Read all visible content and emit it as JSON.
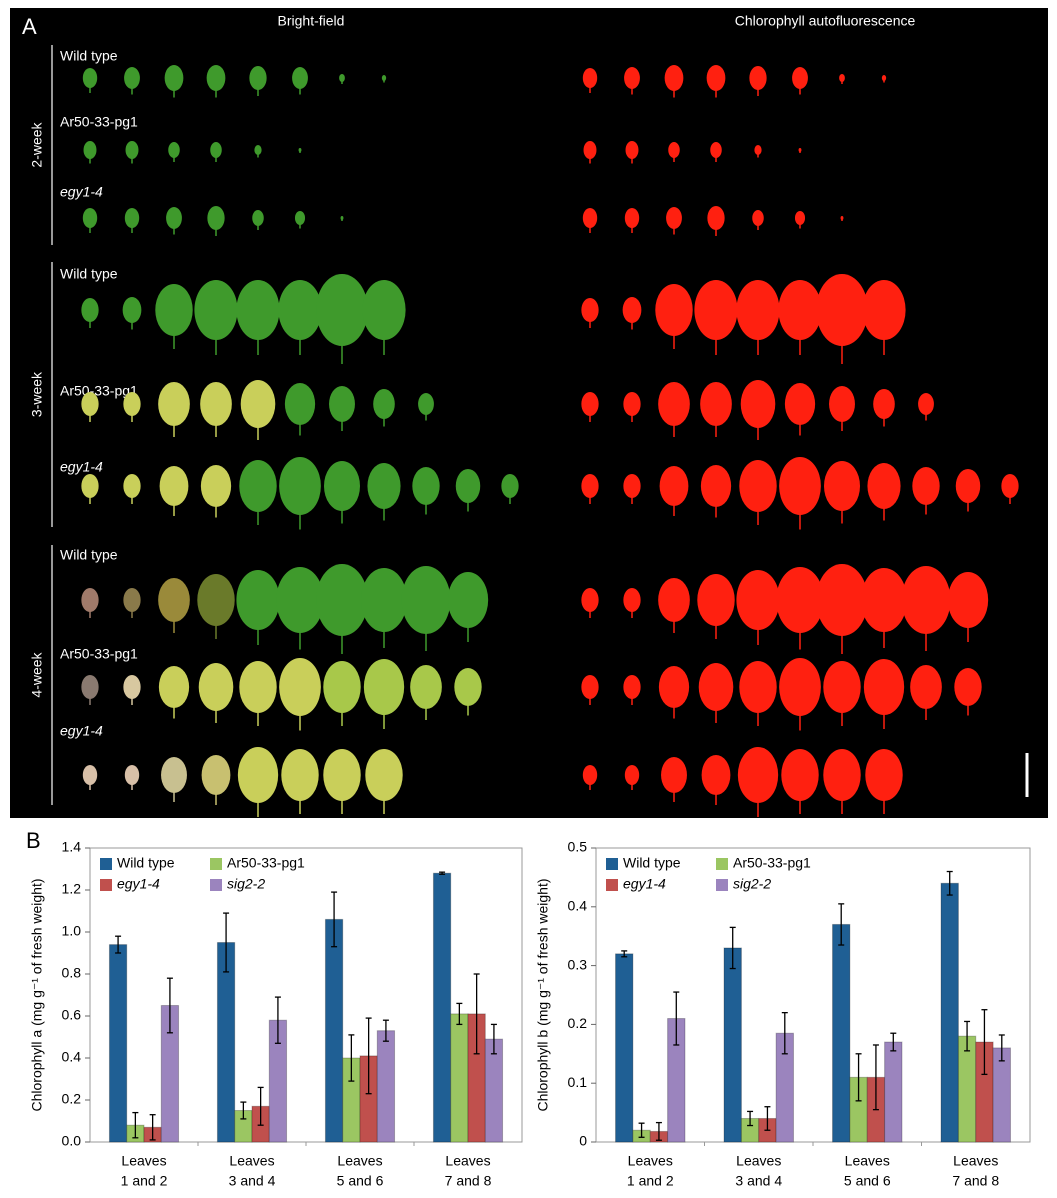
{
  "panel_a": {
    "label": "A",
    "column_titles": [
      "Bright-field",
      "Chlorophyll autofluorescence"
    ],
    "groups": [
      {
        "age": "2-week",
        "rows": [
          "Wild type",
          "Ar50-33-pg1",
          "egy1-4"
        ]
      },
      {
        "age": "3-week",
        "rows": [
          "Wild type",
          "Ar50-33-pg1",
          "egy1-4"
        ]
      },
      {
        "age": "4-week",
        "rows": [
          "Wild type",
          "Ar50-33-pg1",
          "egy1-4"
        ]
      }
    ]
  },
  "panel_b": {
    "label": "B"
  },
  "chart_data": [
    {
      "type": "bar",
      "y_label": "Chlorophyll a (mg g⁻¹ of fresh weight)",
      "categories": [
        [
          "Leaves",
          "1 and 2"
        ],
        [
          "Leaves",
          "3 and 4"
        ],
        [
          "Leaves",
          "5 and 6"
        ],
        [
          "Leaves",
          "7 and 8"
        ]
      ],
      "ylim": [
        0,
        1.4
      ],
      "yticks": [
        {
          "value": 0,
          "label": "0.0"
        },
        0.2,
        0.4,
        0.6,
        0.8,
        {
          "value": 1,
          "label": "1.0"
        },
        1.2,
        1.4
      ],
      "legend": "upper left",
      "series": [
        {
          "name": "Wild type",
          "color": "#1f5f94",
          "italic": false,
          "values": [
            0.94,
            0.95,
            1.06,
            1.28
          ],
          "errors": [
            0.04,
            0.14,
            0.13,
            0.005
          ]
        },
        {
          "name": "Ar50-33-pg1",
          "color": "#9bc662",
          "italic": false,
          "values": [
            0.08,
            0.15,
            0.4,
            0.61
          ],
          "errors": [
            0.06,
            0.04,
            0.11,
            0.05
          ]
        },
        {
          "name": "egy1-4",
          "color": "#c0504d",
          "italic": true,
          "values": [
            0.07,
            0.17,
            0.41,
            0.61
          ],
          "errors": [
            0.06,
            0.09,
            0.18,
            0.19
          ]
        },
        {
          "name": "sig2-2",
          "color": "#9b84be",
          "italic": true,
          "values": [
            0.65,
            0.58,
            0.53,
            0.49
          ],
          "errors": [
            0.13,
            0.11,
            0.05,
            0.07
          ]
        }
      ]
    },
    {
      "type": "bar",
      "y_label": "Chlorophyll b (mg g⁻¹ of fresh weight)",
      "categories": [
        [
          "Leaves",
          "1 and 2"
        ],
        [
          "Leaves",
          "3 and 4"
        ],
        [
          "Leaves",
          "5 and 6"
        ],
        [
          "Leaves",
          "7 and 8"
        ]
      ],
      "ylim": [
        0,
        0.5
      ],
      "yticks": [
        0,
        0.1,
        0.2,
        0.3,
        0.4,
        0.5
      ],
      "legend": "upper left",
      "series": [
        {
          "name": "Wild type",
          "color": "#1f5f94",
          "italic": false,
          "values": [
            0.32,
            0.33,
            0.37,
            0.44
          ],
          "errors": [
            0.005,
            0.035,
            0.035,
            0.02
          ]
        },
        {
          "name": "Ar50-33-pg1",
          "color": "#9bc662",
          "italic": false,
          "values": [
            0.02,
            0.04,
            0.11,
            0.18
          ],
          "errors": [
            0.012,
            0.012,
            0.04,
            0.025
          ]
        },
        {
          "name": "egy1-4",
          "color": "#c0504d",
          "italic": true,
          "values": [
            0.018,
            0.04,
            0.11,
            0.17
          ],
          "errors": [
            0.015,
            0.02,
            0.055,
            0.055
          ]
        },
        {
          "name": "sig2-2",
          "color": "#9b84be",
          "italic": true,
          "values": [
            0.21,
            0.185,
            0.17,
            0.16
          ],
          "errors": [
            0.045,
            0.035,
            0.015,
            0.022
          ]
        }
      ]
    }
  ]
}
